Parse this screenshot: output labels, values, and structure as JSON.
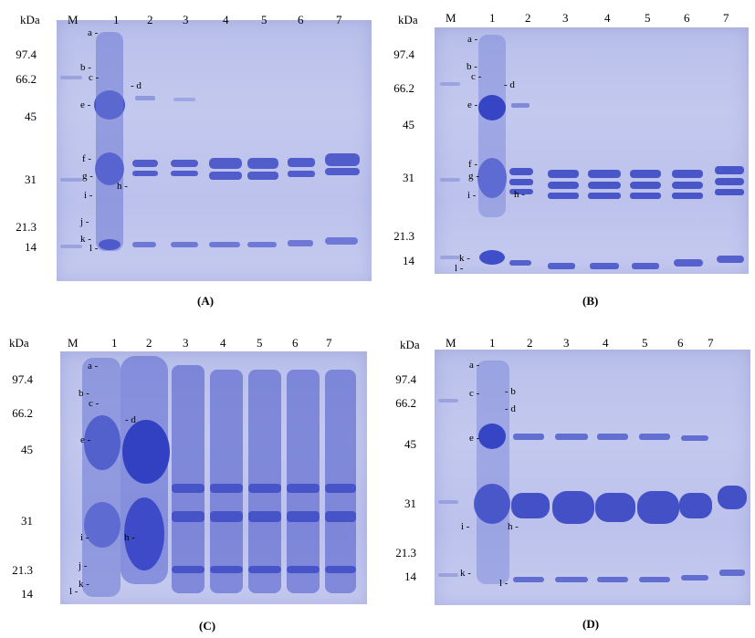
{
  "panels": [
    {
      "id": "A",
      "caption": "(A)",
      "unit": "kDa",
      "marker_lane": "M",
      "lanes": [
        "1",
        "2",
        "3",
        "4",
        "5",
        "6",
        "7"
      ],
      "mw_labels": [
        "97.4",
        "66.2",
        "45",
        "31",
        "21.3",
        "14"
      ],
      "band_letters": [
        "a",
        "b",
        "c",
        "d",
        "e",
        "f",
        "g",
        "h",
        "i",
        "j",
        "k",
        "l"
      ]
    },
    {
      "id": "B",
      "caption": "(B)",
      "unit": "kDa",
      "marker_lane": "M",
      "lanes": [
        "1",
        "2",
        "3",
        "4",
        "5",
        "6",
        "7"
      ],
      "mw_labels": [
        "97.4",
        "66.2",
        "45",
        "31",
        "21.3",
        "14"
      ],
      "band_letters": [
        "a",
        "b",
        "c",
        "d",
        "e",
        "f",
        "g",
        "h",
        "i",
        "k",
        "l"
      ]
    },
    {
      "id": "C",
      "caption": "(C)",
      "unit": "kDa",
      "marker_lane": "M",
      "lanes": [
        "1",
        "2",
        "3",
        "4",
        "5",
        "6",
        "7"
      ],
      "mw_labels": [
        "97.4",
        "66.2",
        "45",
        "31",
        "21.3",
        "14"
      ],
      "band_letters": [
        "a",
        "b",
        "c",
        "d",
        "e",
        "i",
        "h",
        "j",
        "k",
        "l"
      ]
    },
    {
      "id": "D",
      "caption": "(D)",
      "unit": "kDa",
      "marker_lane": "M",
      "lanes": [
        "1",
        "2",
        "3",
        "4",
        "5",
        "6",
        "7"
      ],
      "mw_labels": [
        "97.4",
        "66.2",
        "45",
        "31",
        "21.3",
        "14"
      ],
      "band_letters": [
        "a",
        "c",
        "b",
        "d",
        "e",
        "i",
        "h",
        "k",
        "l"
      ]
    }
  ]
}
